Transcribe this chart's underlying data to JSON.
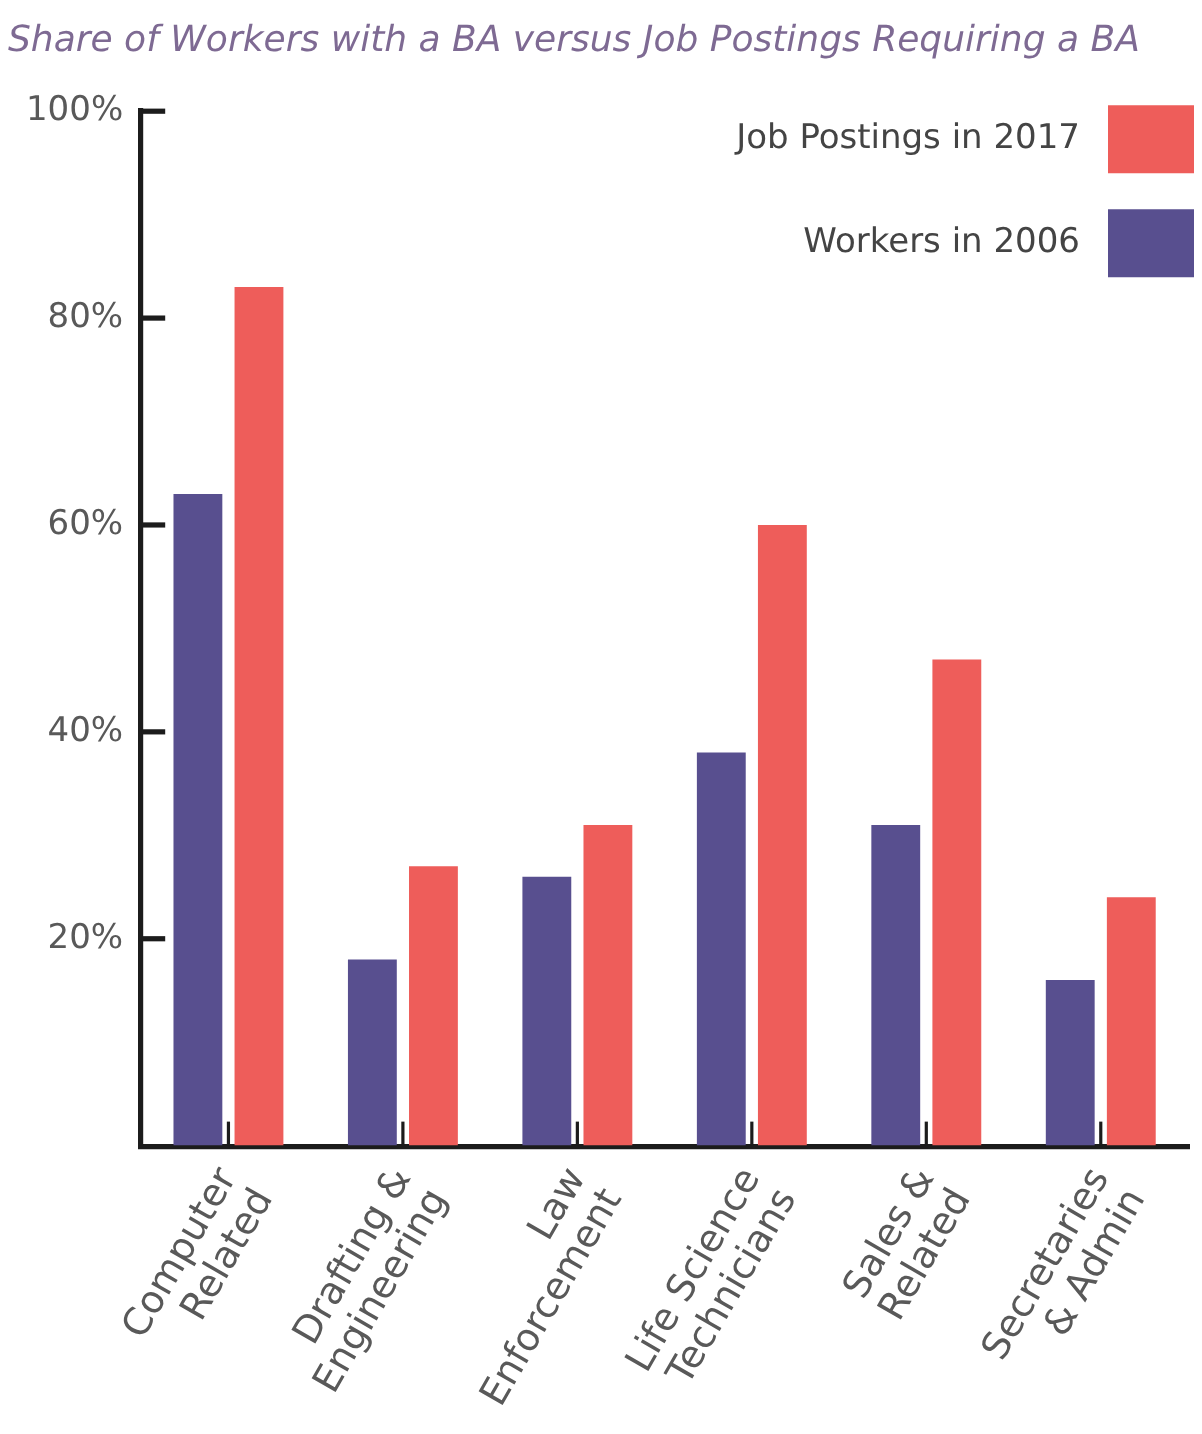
{
  "chart_data": {
    "type": "bar",
    "title": "Share of Workers with a BA versus Job Postings Requiring a BA",
    "categories": [
      "Computer\nRelated",
      "Drafting &\nEngineering",
      "Law\nEnforcement",
      "Life Science\nTechnicians",
      "Sales &\nRelated",
      "Secretaries\n& Admin"
    ],
    "series": [
      {
        "name": "Workers in 2006",
        "color": "#584f8f",
        "values": [
          63,
          18,
          26,
          38,
          31,
          16
        ]
      },
      {
        "name": "Job Postings in 2017",
        "color": "#ee5d5a",
        "values": [
          83,
          27,
          31,
          60,
          47,
          24
        ]
      }
    ],
    "ylim": [
      0,
      100
    ],
    "yticks": [
      {
        "value": 20,
        "label": "20%"
      },
      {
        "value": 40,
        "label": "40%"
      },
      {
        "value": 60,
        "label": "60%"
      },
      {
        "value": 80,
        "label": "80%"
      },
      {
        "value": 100,
        "label": "100%"
      }
    ],
    "legend": "top right"
  }
}
